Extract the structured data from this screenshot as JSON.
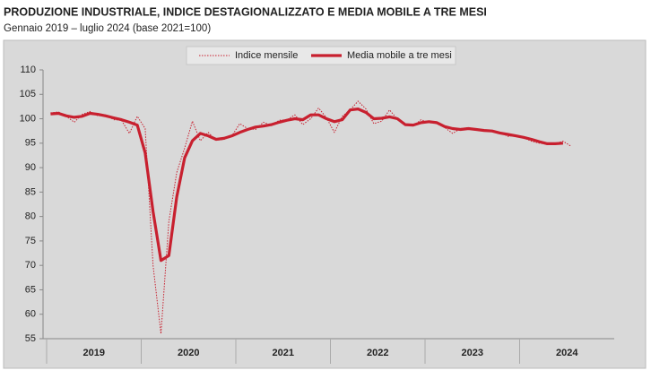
{
  "chart_data": {
    "type": "line",
    "title": "PRODUZIONE INDUSTRIALE, INDICE DESTAGIONALIZZATO E MEDIA MOBILE A TRE MESI",
    "subtitle": "Gennaio 2019 – luglio 2024 (base 2021=100)",
    "categories": [
      null,
      null,
      null,
      null,
      null,
      null,
      null,
      null,
      null,
      null,
      null,
      null,
      null,
      null,
      null,
      null,
      null,
      null,
      null,
      null,
      null,
      null,
      null,
      null,
      null,
      null,
      null,
      null,
      null,
      null,
      null,
      null,
      null,
      null,
      null,
      null,
      null,
      null,
      null,
      null,
      null,
      null,
      null,
      null,
      null,
      null,
      null,
      null,
      null,
      null,
      null,
      null,
      null,
      null,
      null,
      null,
      null,
      null,
      null,
      null,
      null,
      null,
      null,
      null,
      null,
      null,
      null
    ],
    "year_labels": [
      "2019",
      "2020",
      "2021",
      "2022",
      "2023",
      "2024"
    ],
    "series": [
      {
        "name": "Indice mensile",
        "color": "#c8202f",
        "style": "dotted",
        "values": [
          101.2,
          101.4,
          100.5,
          99.3,
          100.9,
          101.5,
          100.6,
          100.8,
          99.8,
          99.7,
          97,
          100.5,
          98,
          70,
          56,
          79,
          89,
          94,
          99.5,
          95.5,
          97.2,
          95.6,
          95.8,
          96.5,
          99,
          98,
          97.8,
          99.3,
          98.6,
          99.7,
          99.8,
          100.8,
          98.8,
          100,
          102.2,
          100.2,
          97.2,
          100.5,
          101.8,
          103.6,
          102,
          99,
          99.5,
          101.8,
          99.9,
          99,
          98.5,
          99.8,
          99.2,
          99,
          98.2,
          97,
          98,
          98.2,
          97.7,
          97.5,
          97.4,
          97.3,
          96.4,
          96.6,
          96.1,
          95.4,
          95,
          94.8,
          94.9,
          95.4,
          94.4
        ]
      },
      {
        "name": "Media mobile a tre mesi",
        "color": "#c8202f",
        "style": "solid",
        "values": [
          101,
          101.1,
          100.6,
          100.3,
          100.5,
          101.1,
          100.9,
          100.6,
          100.2,
          99.8,
          99.3,
          98.7,
          93,
          81,
          71,
          72,
          84,
          92,
          95.5,
          97,
          96.5,
          95.8,
          96,
          96.5,
          97.2,
          97.8,
          98.3,
          98.5,
          98.8,
          99.3,
          99.7,
          100,
          99.8,
          100.8,
          100.8,
          100,
          99.4,
          99.8,
          101.8,
          102,
          101.3,
          100,
          100.1,
          100.4,
          100,
          98.8,
          98.7,
          99.2,
          99.4,
          99.2,
          98.4,
          98,
          97.8,
          98,
          97.8,
          97.6,
          97.5,
          97.1,
          96.8,
          96.5,
          96.2,
          95.8,
          95.3,
          94.9,
          94.9,
          95,
          null
        ]
      }
    ],
    "ylim": [
      55,
      110
    ],
    "yticks": [
      55,
      60,
      65,
      70,
      75,
      80,
      85,
      90,
      95,
      100,
      105,
      110
    ]
  }
}
